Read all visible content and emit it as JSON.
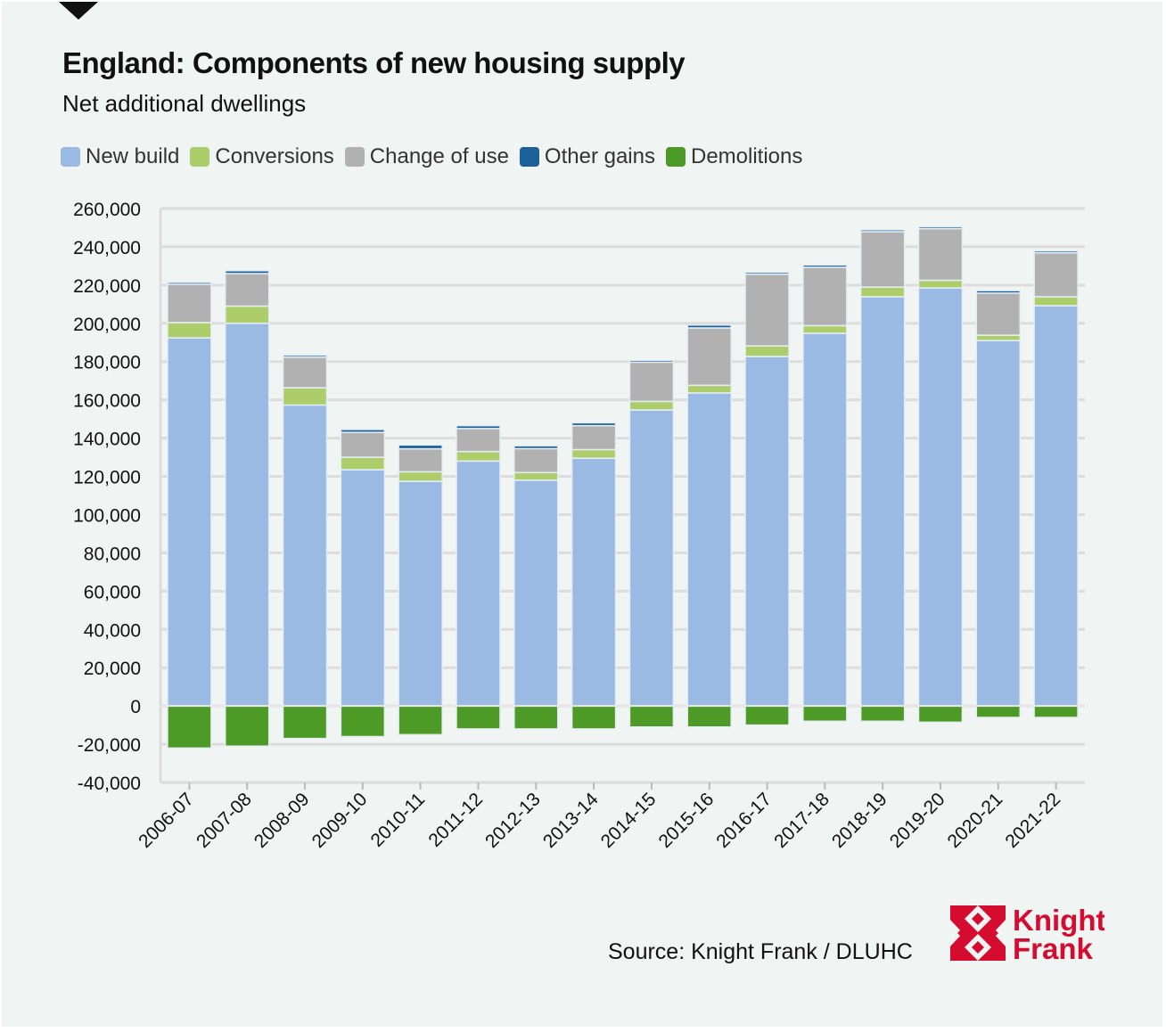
{
  "title": "England: Components of new housing supply",
  "subtitle": "Net additional dwellings",
  "source": "Source: Knight Frank / DLUHC",
  "logo": {
    "text": [
      "Knight",
      "Frank"
    ],
    "color": "#d50c2f"
  },
  "chart_data": {
    "type": "bar",
    "stacked": true,
    "title": "England: Components of new housing supply",
    "subtitle": "Net additional dwellings",
    "xlabel": "",
    "ylabel": "",
    "ylim": [
      -40000,
      260000
    ],
    "yticks": [
      -40000,
      -20000,
      0,
      20000,
      40000,
      60000,
      80000,
      100000,
      120000,
      140000,
      160000,
      180000,
      200000,
      220000,
      240000,
      260000
    ],
    "ytick_labels": [
      "-40,000",
      "-20,000",
      "0",
      "20,000",
      "40,000",
      "60,000",
      "80,000",
      "100,000",
      "120,000",
      "140,000",
      "160,000",
      "180,000",
      "200,000",
      "220,000",
      "240,000",
      "260,000"
    ],
    "grid": true,
    "legend": "top-left",
    "categories": [
      "2006-07",
      "2007-08",
      "2008-09",
      "2009-10",
      "2010-11",
      "2011-12",
      "2012-13",
      "2013-14",
      "2014-15",
      "2015-16",
      "2016-17",
      "2017-18",
      "2018-19",
      "2019-20",
      "2020-21",
      "2021-22"
    ],
    "series": [
      {
        "name": "New build",
        "color": "#9ab9e3",
        "values": [
          192400,
          200000,
          157300,
          123500,
          117400,
          128000,
          118000,
          129500,
          154700,
          163600,
          182700,
          194800,
          213900,
          218500,
          191000,
          209200
        ]
      },
      {
        "name": "Conversions",
        "color": "#adcd6a",
        "values": [
          8000,
          9000,
          9000,
          6500,
          5000,
          5000,
          4000,
          4500,
          4500,
          4000,
          5500,
          4000,
          5000,
          4000,
          2800,
          4700
        ]
      },
      {
        "name": "Change of use",
        "color": "#b1b1b1",
        "values": [
          20000,
          17000,
          16000,
          13000,
          12000,
          12000,
          12500,
          12500,
          20500,
          30000,
          37500,
          30500,
          29000,
          27000,
          22000,
          23000
        ]
      },
      {
        "name": "Other gains",
        "color": "#1a6299",
        "values": [
          1000,
          1500,
          1000,
          1500,
          2000,
          1500,
          1500,
          1500,
          1000,
          1500,
          1000,
          1200,
          1000,
          1000,
          1300,
          1000
        ]
      },
      {
        "name": "Demolitions",
        "color": "#4e9a26",
        "values": [
          -22000,
          -21000,
          -17000,
          -16000,
          -15000,
          -12000,
          -12000,
          -12000,
          -11000,
          -11000,
          -10000,
          -8000,
          -8000,
          -8500,
          -6000,
          -6000
        ]
      }
    ]
  }
}
